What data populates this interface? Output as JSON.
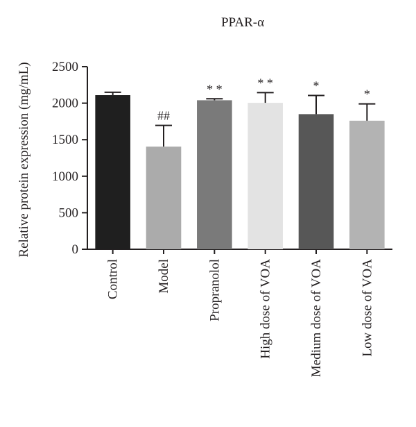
{
  "chart_data": {
    "type": "bar",
    "title": "PPAR-α",
    "xlabel": "",
    "ylabel": "Relative protein expression (mg/mL)",
    "ylim": [
      0,
      2500
    ],
    "yticks": [
      "0",
      "500",
      "1000",
      "1500",
      "2000",
      "2500"
    ],
    "categories": [
      "Control",
      "Model",
      "Propranolol",
      "High dose of VOA",
      "Medium dose of VOA",
      "Low dose of VOA"
    ],
    "values": [
      2110,
      1405,
      2040,
      2005,
      1850,
      1760
    ],
    "errors": [
      40,
      290,
      20,
      140,
      255,
      230
    ],
    "annotations": [
      "",
      "##",
      "* *",
      "* *",
      "*",
      "*"
    ],
    "colors": [
      "#1f1f1f",
      "#ababab",
      "#7a7a7a",
      "#e3e3e3",
      "#575757",
      "#b3b3b3"
    ],
    "grid": false,
    "legend": "none"
  }
}
